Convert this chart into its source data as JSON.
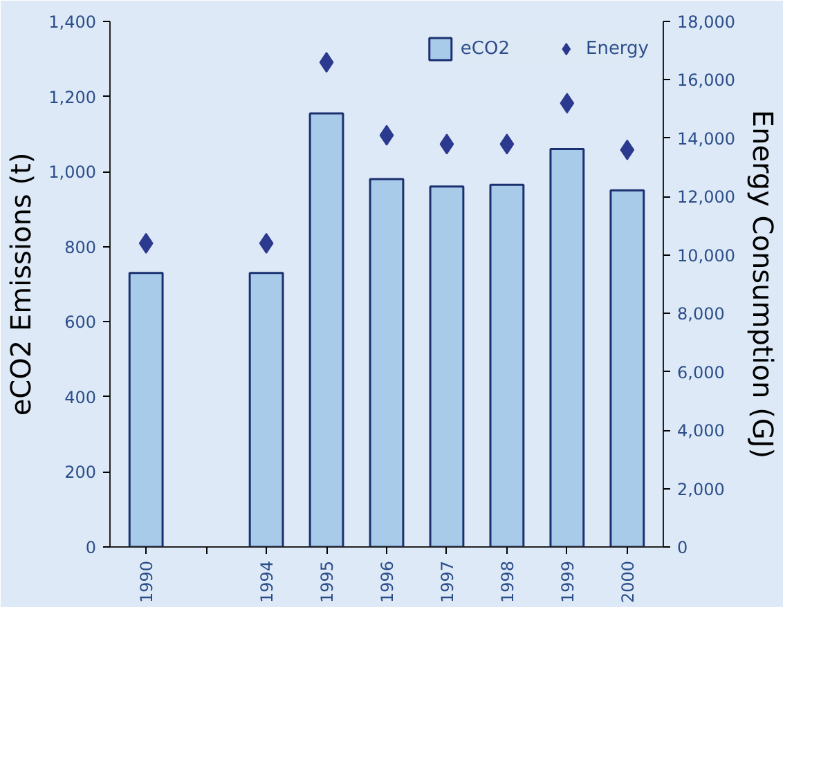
{
  "chart_data": {
    "type": "bar",
    "ylabel": "eCO2 Emissions (t)",
    "y2label": "Energy Consumption (GJ)",
    "categories": [
      "1990",
      null,
      "1994",
      "1995",
      "1996",
      "1997",
      "1998",
      "1999",
      "2000"
    ],
    "ylim": [
      0,
      1400
    ],
    "yticks": [
      {
        "value": 0,
        "label": "0"
      },
      {
        "value": 200,
        "label": "200"
      },
      {
        "value": 400,
        "label": "400"
      },
      {
        "value": 600,
        "label": "600"
      },
      {
        "value": 800,
        "label": "800"
      },
      {
        "value": 1000,
        "label": "1,000"
      },
      {
        "value": 1200,
        "label": "1,200"
      },
      {
        "value": 1400,
        "label": "1,400"
      }
    ],
    "y2lim": [
      0,
      18000
    ],
    "y2ticks": [
      {
        "value": 0,
        "label": "0"
      },
      {
        "value": 2000,
        "label": "2,000"
      },
      {
        "value": 4000,
        "label": "4,000"
      },
      {
        "value": 6000,
        "label": "6,000"
      },
      {
        "value": 8000,
        "label": "8,000"
      },
      {
        "value": 10000,
        "label": "10,000"
      },
      {
        "value": 12000,
        "label": "12,000"
      },
      {
        "value": 14000,
        "label": "14,000"
      },
      {
        "value": 16000,
        "label": "16,000"
      },
      {
        "value": 18000,
        "label": "18,000"
      }
    ],
    "series": [
      {
        "name": "eCO2",
        "color": "#a8cbea",
        "values": [
          730,
          null,
          730,
          1155,
          980,
          960,
          965,
          1060,
          950
        ]
      },
      {
        "name": "Energy",
        "type": "scatter",
        "axis": "y2",
        "marker": "diamond",
        "color": "#2b3a8f",
        "values": [
          10400,
          null,
          10400,
          16600,
          14100,
          13800,
          13800,
          15200,
          13600
        ]
      }
    ],
    "legend": "top right",
    "grid": false
  }
}
